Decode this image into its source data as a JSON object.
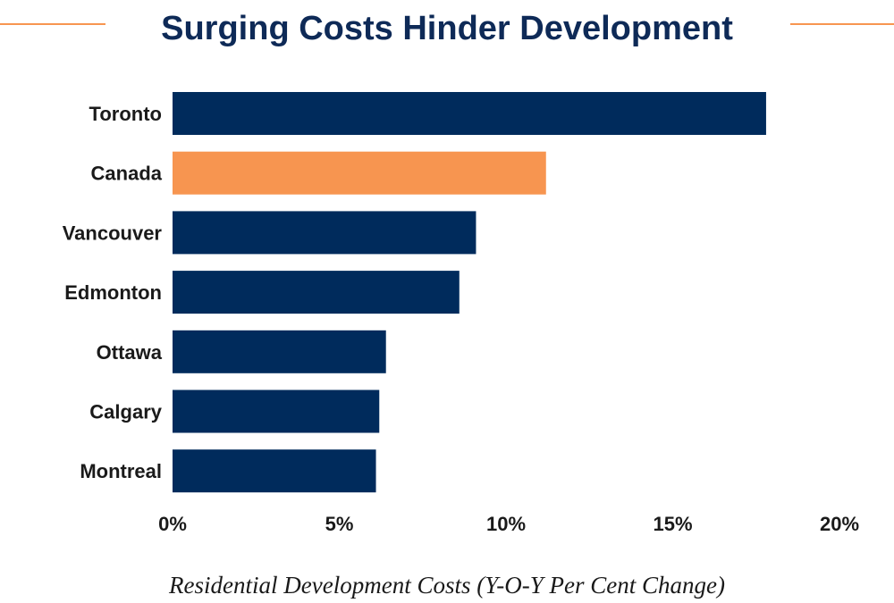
{
  "colors": {
    "default_bar": "#002b5c",
    "highlight_bar": "#f79550",
    "title": "#0e2a57",
    "title_rule": "#f79550"
  },
  "chart_data": {
    "type": "bar",
    "orientation": "horizontal",
    "title": "Surging Costs Hinder Development",
    "xlabel": "Residential Development Costs (Y-O-Y Per Cent Change)",
    "ylabel": "",
    "categories": [
      "Toronto",
      "Canada",
      "Vancouver",
      "Edmonton",
      "Ottawa",
      "Calgary",
      "Montreal"
    ],
    "values": [
      17.8,
      11.2,
      9.1,
      8.6,
      6.4,
      6.2,
      6.1
    ],
    "highlight": [
      "Canada"
    ],
    "xlim": [
      0,
      20
    ],
    "xticks": [
      0,
      5,
      10,
      15,
      20
    ],
    "xtick_labels": [
      "0%",
      "5%",
      "10%",
      "15%",
      "20%"
    ],
    "grid": false,
    "legend": "none"
  }
}
